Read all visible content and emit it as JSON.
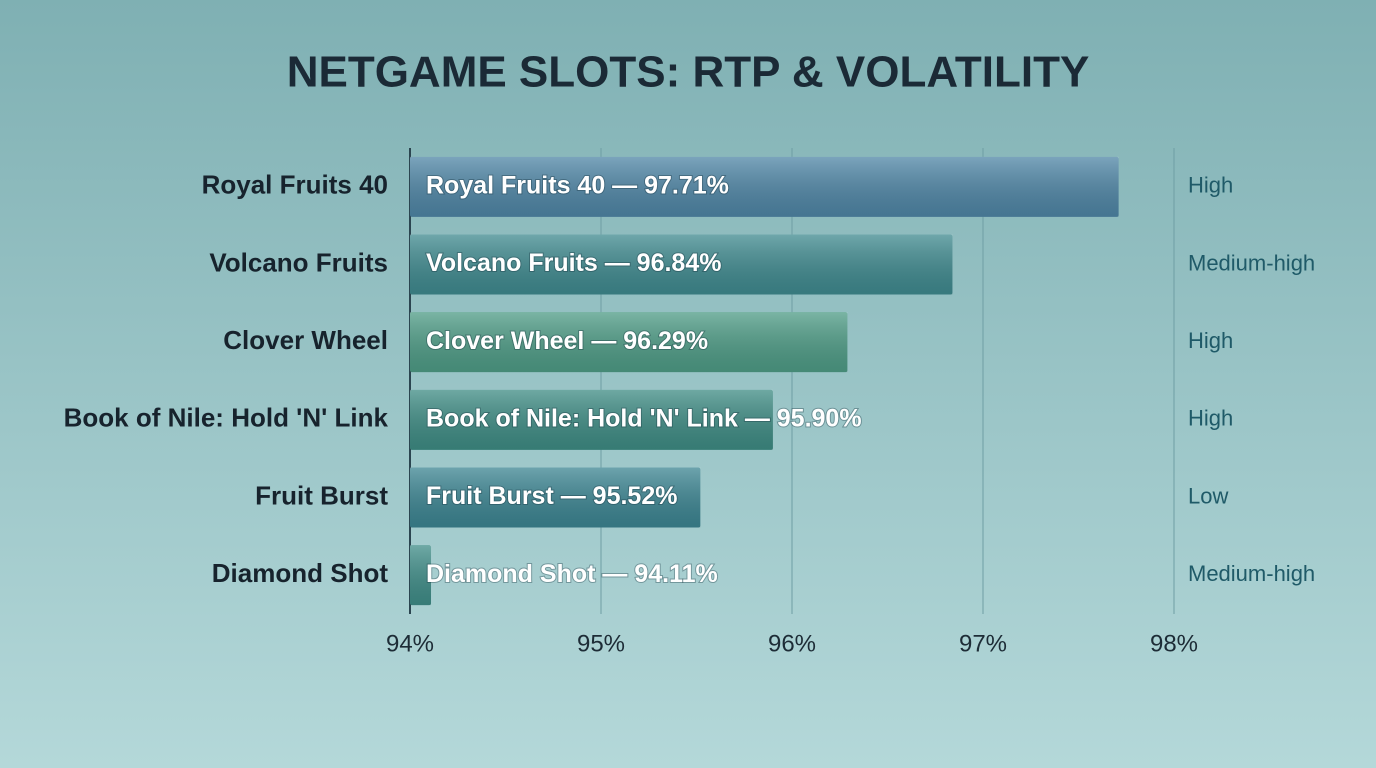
{
  "chart_data": {
    "type": "hbar",
    "title": "NETGAME SLOTS: RTP & VOLATILITY",
    "categories": [
      "Royal Fruits 40",
      "Volcano Fruits",
      "Clover Wheel",
      "Book of Nile: Hold 'N' Link",
      "Fruit Burst",
      "Diamond Shot"
    ],
    "values": [
      97.71,
      96.84,
      96.29,
      95.9,
      95.52,
      94.11
    ],
    "value_labels": [
      "Royal Fruits 40 — 97.71%",
      "Volcano Fruits — 96.84%",
      "Clover Wheel — 96.29%",
      "Book of Nile: Hold 'N' Link — 95.90%",
      "Fruit Burst — 95.52%",
      "Diamond Shot — 94.11%"
    ],
    "volatility": [
      "High",
      "Medium-high",
      "High",
      "High",
      "Low",
      "Medium-high"
    ],
    "colors": [
      "#4f86a6",
      "#3f8a8f",
      "#4e9c86",
      "#3e8c84",
      "#3c8592",
      "#3f8d88"
    ],
    "xlim": [
      94,
      98
    ],
    "xticks": [
      {
        "value": 94,
        "label": "94%"
      },
      {
        "value": 95,
        "label": "95%"
      },
      {
        "value": 96,
        "label": "96%"
      },
      {
        "value": 97,
        "label": "97%"
      },
      {
        "value": 98,
        "label": "98%"
      }
    ],
    "grid": true
  }
}
